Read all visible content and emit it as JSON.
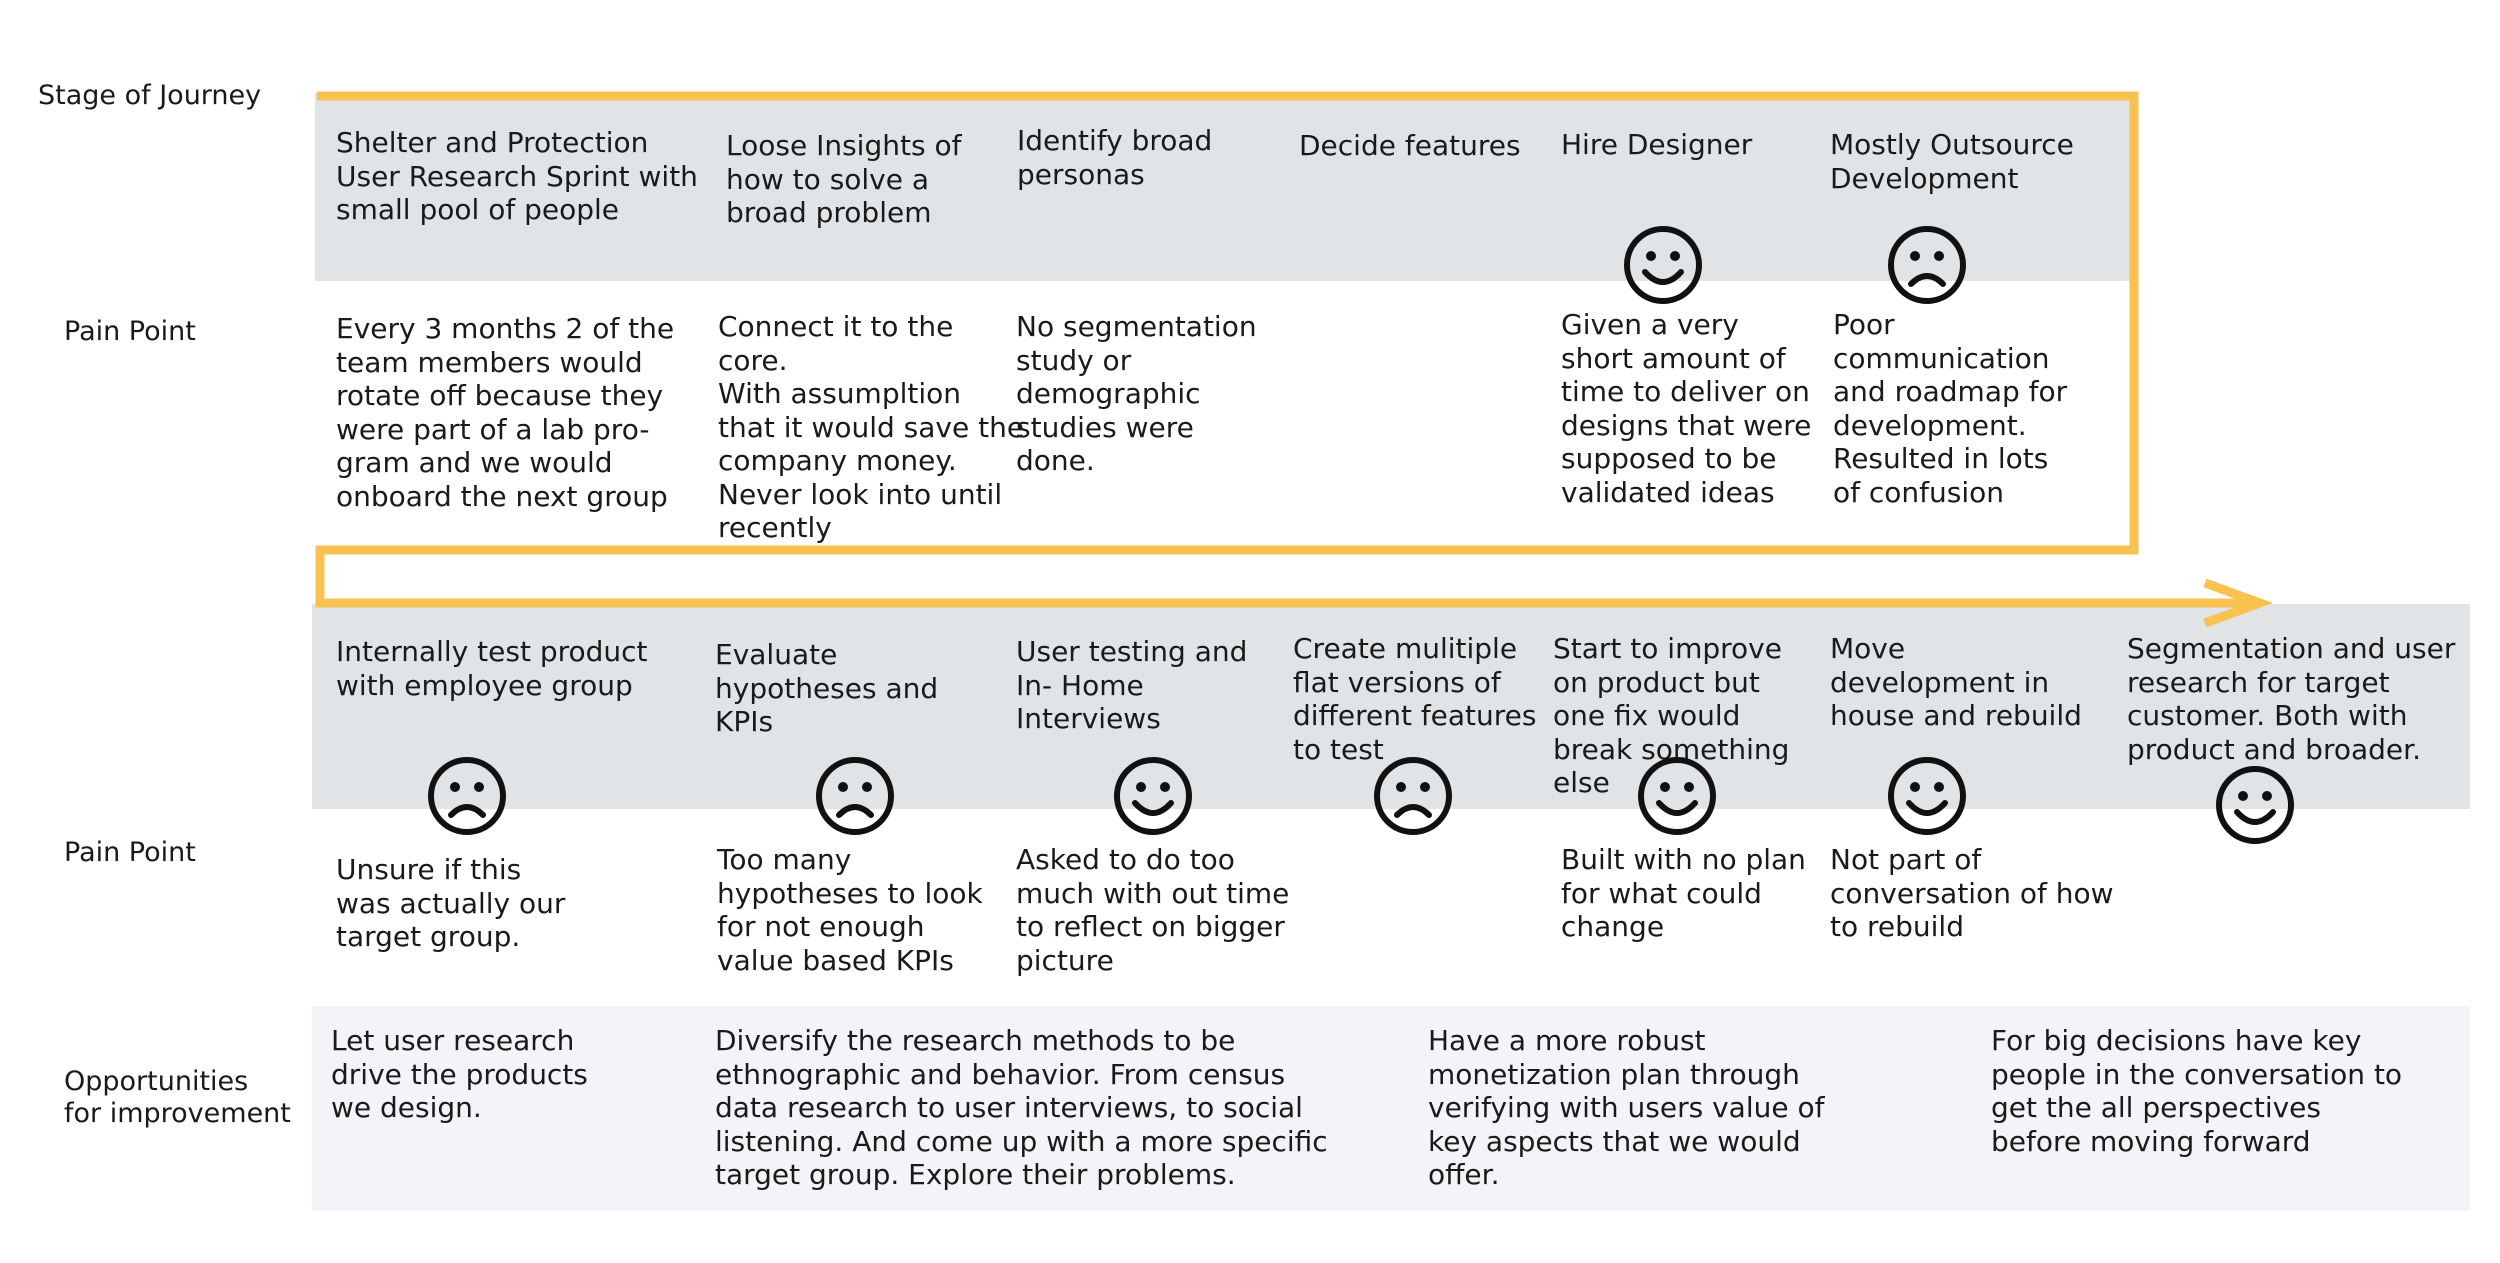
{
  "labels": {
    "stage_of_journey": "Stage of Journey",
    "pain_point_1": "Pain Point",
    "pain_point_2": "Pain Point",
    "opportunities": "Opportunities\nfor improvement"
  },
  "row1": {
    "stages": [
      "Shelter and Protection\nUser Research Sprint with\nsmall pool of people",
      "Loose Insights of\nhow to solve a\nbroad problem",
      "Identify broad\npersonas",
      "Decide features",
      "Hire Designer",
      "Mostly Outsource\nDevelopment"
    ],
    "pain_points": [
      "Every 3 months 2 of the\nteam members would\nrotate off because they\nwere part of a lab pro-\ngram and we would\nonboard the next group",
      "Connect it to the\ncore.\nWith assumpltion\nthat it would save the\ncompany money.\nNever look into until\nrecently",
      "No segmentation\nstudy or\ndemographic\nstudies were\ndone.",
      "",
      "Given a very\nshort amount of\ntime to deliver on\ndesigns that were\nsupposed to be\nvalidated ideas",
      "Poor\ncommunication\nand roadmap for\ndevelopment.\nResulted in lots\nof confusion"
    ],
    "emotions": [
      "",
      "",
      "",
      "",
      "happy",
      "sad"
    ]
  },
  "row2": {
    "stages": [
      "Internally test product\nwith employee group",
      "Evaluate\nhypotheses and\nKPIs",
      "User testing and\nIn- Home\nInterviews",
      "Create mulitiple\nflat versions of\ndifferent features\nto test",
      "Start to improve\non product but\none fix would\nbreak something\nelse",
      "Move\ndevelopment in\nhouse and rebuild",
      "Segmentation and user\nresearch for target\ncustomer. Both with\nproduct and broader."
    ],
    "pain_points": [
      "Unsure if this\nwas actually our\ntarget group.",
      "Too many\nhypotheses to look\nfor not enough\nvalue based KPIs",
      "Asked to do too\nmuch with out time\nto reflect on bigger\npicture",
      "",
      "Built with no plan\nfor what could\nchange",
      "Not part of\nconversation of how\nto rebuild",
      ""
    ],
    "emotions": [
      "sad",
      "sad",
      "happy",
      "sad",
      "happy",
      "happy",
      "happy"
    ]
  },
  "opportunities": [
    "Let user research\ndrive the products\nwe design.",
    "Diversify the research methods to be\nethnographic and behavior. From census\ndata research to user interviews, to social\nlistening. And come up with a more specific\ntarget group. Explore their problems.",
    "Have a more robust\nmonetization plan through\nverifying with users value of\nkey aspects that we would\noffer.",
    "For big decisions have key\npeople in the conversation to\nget the all perspectives\nbefore moving forward"
  ],
  "colors": {
    "journey_line": "#f8c150",
    "stage_band": "#e1e4e7",
    "opportunity_band": "#f3f4f7"
  }
}
